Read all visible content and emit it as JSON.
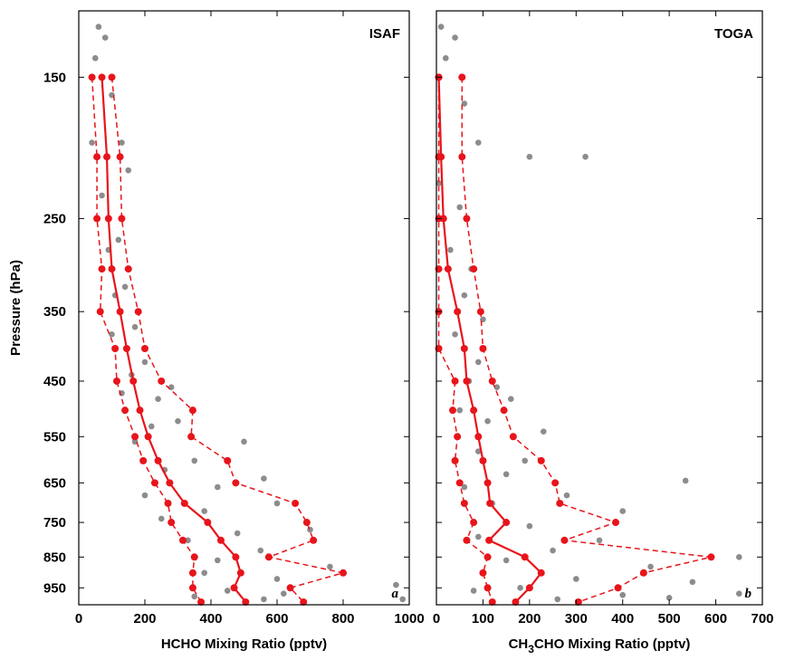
{
  "chart_data": [
    {
      "type": "profile",
      "annotation": "ISAF",
      "panel_label": "a",
      "xlabel": "HCHO Mixing Ratio (pptv)",
      "ylabel": "Pressure (hPa)",
      "ytick_labels": true,
      "xlim": [
        0,
        1000
      ],
      "xticks": [
        0,
        200,
        400,
        600,
        800,
        1000
      ],
      "ylim": [
        1010,
        118
      ],
      "yticks": [
        150,
        250,
        350,
        450,
        550,
        650,
        750,
        850,
        950
      ],
      "ylog": true,
      "scatter": {
        "color": "#8c8c8c",
        "x": [
          60,
          80,
          50,
          100,
          130,
          40,
          150,
          70,
          120,
          90,
          140,
          110,
          170,
          100,
          200,
          160,
          280,
          240,
          130,
          300,
          220,
          500,
          170,
          350,
          260,
          560,
          420,
          200,
          600,
          380,
          250,
          700,
          480,
          330,
          550,
          420,
          760,
          380,
          600,
          960,
          450,
          350,
          560,
          980,
          620
        ],
        "y": [
          125,
          130,
          140,
          160,
          190,
          190,
          210,
          230,
          270,
          280,
          320,
          330,
          370,
          380,
          420,
          440,
          460,
          480,
          470,
          520,
          530,
          560,
          560,
          600,
          620,
          640,
          660,
          680,
          700,
          720,
          740,
          770,
          780,
          800,
          830,
          860,
          880,
          900,
          920,
          940,
          960,
          980,
          990,
          990,
          970
        ]
      },
      "levels": [
        150,
        200,
        250,
        300,
        350,
        400,
        450,
        500,
        550,
        600,
        650,
        700,
        750,
        800,
        850,
        900,
        950,
        1000
      ],
      "profiles": [
        {
          "color": "#e8141b",
          "dashed": false,
          "values": [
            70,
            85,
            90,
            100,
            125,
            145,
            165,
            185,
            210,
            240,
            275,
            320,
            390,
            430,
            475,
            490,
            470,
            505
          ]
        },
        {
          "color": "#e8141b",
          "dashed": true,
          "values": [
            40,
            55,
            55,
            70,
            65,
            110,
            115,
            140,
            170,
            195,
            230,
            270,
            280,
            315,
            350,
            345,
            345,
            370
          ]
        },
        {
          "color": "#e8141b",
          "dashed": true,
          "values": [
            100,
            125,
            130,
            150,
            180,
            200,
            250,
            345,
            340,
            450,
            475,
            655,
            690,
            710,
            575,
            800,
            640,
            680
          ]
        }
      ]
    },
    {
      "type": "profile",
      "annotation": "TOGA",
      "panel_label": "b",
      "xlabel_parts": [
        "CH",
        "3",
        "CHO Mixing Ratio (pptv)"
      ],
      "ytick_labels": false,
      "xlim": [
        0,
        700
      ],
      "xticks": [
        0,
        100,
        200,
        300,
        400,
        500,
        600,
        700
      ],
      "ylim": [
        1010,
        118
      ],
      "yticks": [
        150,
        250,
        350,
        450,
        550,
        650,
        750,
        850,
        950
      ],
      "ylog": true,
      "scatter": {
        "color": "#8c8c8c",
        "x": [
          10,
          40,
          20,
          60,
          90,
          320,
          200,
          5,
          50,
          30,
          75,
          60,
          100,
          40,
          90,
          70,
          130,
          160,
          50,
          110,
          230,
          90,
          190,
          150,
          535,
          60,
          280,
          120,
          400,
          200,
          90,
          350,
          250,
          650,
          150,
          460,
          300,
          550,
          180,
          80,
          400,
          260,
          500,
          650
        ],
        "y": [
          125,
          130,
          140,
          165,
          190,
          200,
          200,
          220,
          240,
          280,
          300,
          330,
          360,
          380,
          420,
          450,
          460,
          480,
          500,
          520,
          540,
          580,
          600,
          630,
          645,
          660,
          680,
          700,
          720,
          760,
          790,
          800,
          830,
          850,
          860,
          880,
          920,
          930,
          950,
          960,
          975,
          990,
          985,
          970
        ]
      },
      "levels": [
        150,
        200,
        250,
        300,
        350,
        400,
        450,
        500,
        550,
        600,
        650,
        700,
        750,
        800,
        850,
        900,
        950,
        1000
      ],
      "profiles": [
        {
          "color": "#e8141b",
          "dashed": false,
          "values": [
            5,
            10,
            15,
            25,
            45,
            60,
            65,
            80,
            90,
            100,
            110,
            115,
            150,
            113,
            190,
            225,
            200,
            170
          ]
        },
        {
          "color": "#e8141b",
          "dashed": true,
          "values": [
            5,
            5,
            5,
            5,
            5,
            5,
            40,
            35,
            45,
            40,
            50,
            60,
            80,
            65,
            110,
            100,
            110,
            120
          ]
        },
        {
          "color": "#e8141b",
          "dashed": true,
          "values": [
            55,
            55,
            65,
            80,
            95,
            100,
            120,
            145,
            165,
            225,
            255,
            265,
            385,
            275,
            590,
            445,
            390,
            305
          ]
        }
      ]
    }
  ]
}
